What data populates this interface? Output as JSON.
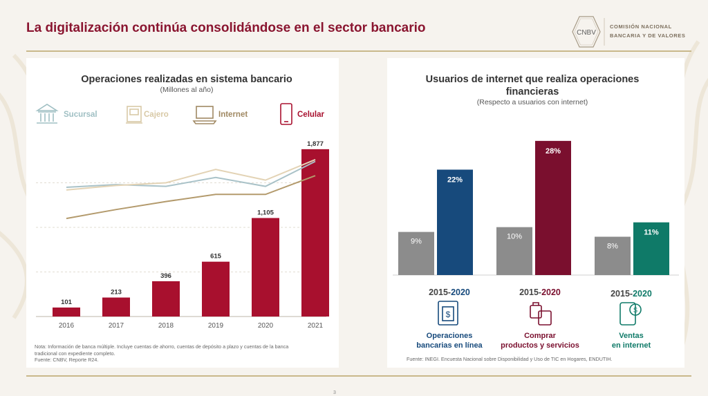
{
  "header": {
    "title": "La digitalización continúa consolidándose en el sector bancario",
    "logo_mark": "CNBV",
    "logo_line1": "COMISIÓN NACIONAL",
    "logo_line2": "BANCARIA Y DE VALORES"
  },
  "left_panel": {
    "note_line1": "Nota: Información de banca múltiple. Incluye cuentas de ahorro, cuentas de depósito a plazo y cuentas de la banca",
    "note_line2": "tradicional con expediente completo.",
    "source": "Fuente: CNBV, Reporte R24."
  },
  "right_panel": {
    "periods": [
      {
        "prefix": "2015-",
        "highlight": "2020",
        "highlight_color": "#174a7c"
      },
      {
        "prefix": "2015-",
        "highlight": "2020",
        "highlight_color": "#7a0f2e"
      },
      {
        "prefix": "2015-",
        "highlight": "2020",
        "highlight_color": "#0f7a68"
      }
    ],
    "source": "Fuente: INEGI. Encuesta Nacional sobre Disponibilidad y Uso de TIC en Hogares, ENDUTIH."
  },
  "page_number": "3",
  "chart_data": [
    {
      "type": "bar",
      "title": "Operaciones realizadas en sistema bancario",
      "subtitle": "(Millones al año)",
      "categories": [
        "2016",
        "2017",
        "2018",
        "2019",
        "2020",
        "2021"
      ],
      "series": [
        {
          "name": "Celular",
          "values": [
            101,
            213,
            396,
            615,
            1105,
            1877
          ],
          "color": "#a8102e"
        },
        {
          "name": "Sucursal",
          "values": [
            1450,
            1480,
            1460,
            1560,
            1460,
            1740
          ],
          "color": "#a9c2c8"
        },
        {
          "name": "Cajero",
          "values": [
            1420,
            1470,
            1500,
            1650,
            1530,
            1760
          ],
          "color": "#e3d3b5"
        },
        {
          "name": "Internet",
          "values": [
            1100,
            1200,
            1290,
            1370,
            1370,
            1580
          ],
          "color": "#b39a6c"
        }
      ],
      "data_labels": [
        "101",
        "213",
        "396",
        "615",
        "1,105",
        "1,877"
      ],
      "legend": [
        "Sucursal",
        "Cajero",
        "Internet",
        "Celular"
      ],
      "legend_colors": [
        "#9fbfc3",
        "#d8c9a6",
        "#a08963",
        "#a8102e"
      ],
      "legend_placement": "top",
      "ylim": [
        0,
        2000
      ],
      "grid": true
    },
    {
      "type": "bar",
      "title": "Usuarios de internet que realiza operaciones financieras",
      "title_lines": [
        "Usuarios de internet que realiza operaciones",
        "financieras"
      ],
      "subtitle": "(Respecto a usuarios con internet)",
      "categories": [
        "Operaciones bancarias en línea",
        "Comprar productos y servicios",
        "Ventas en internet"
      ],
      "category_lines": [
        [
          "Operaciones",
          "bancarias  en línea"
        ],
        [
          "Comprar",
          "productos y servicios"
        ],
        [
          "Ventas",
          "en internet"
        ]
      ],
      "category_colors": [
        "#174a7c",
        "#7a0f2e",
        "#0f7a68"
      ],
      "series": [
        {
          "values": [
            9,
            10,
            8
          ],
          "labels": [
            "9%",
            "10%",
            "8%"
          ],
          "color": "#8c8c8c"
        },
        {
          "values": [
            22,
            28,
            11
          ],
          "labels": [
            "22%",
            "28%",
            "11%"
          ],
          "colors": [
            "#174a7c",
            "#7a0f2e",
            "#0f7a68"
          ]
        }
      ],
      "ylim": [
        0,
        30
      ],
      "grid": false
    }
  ]
}
